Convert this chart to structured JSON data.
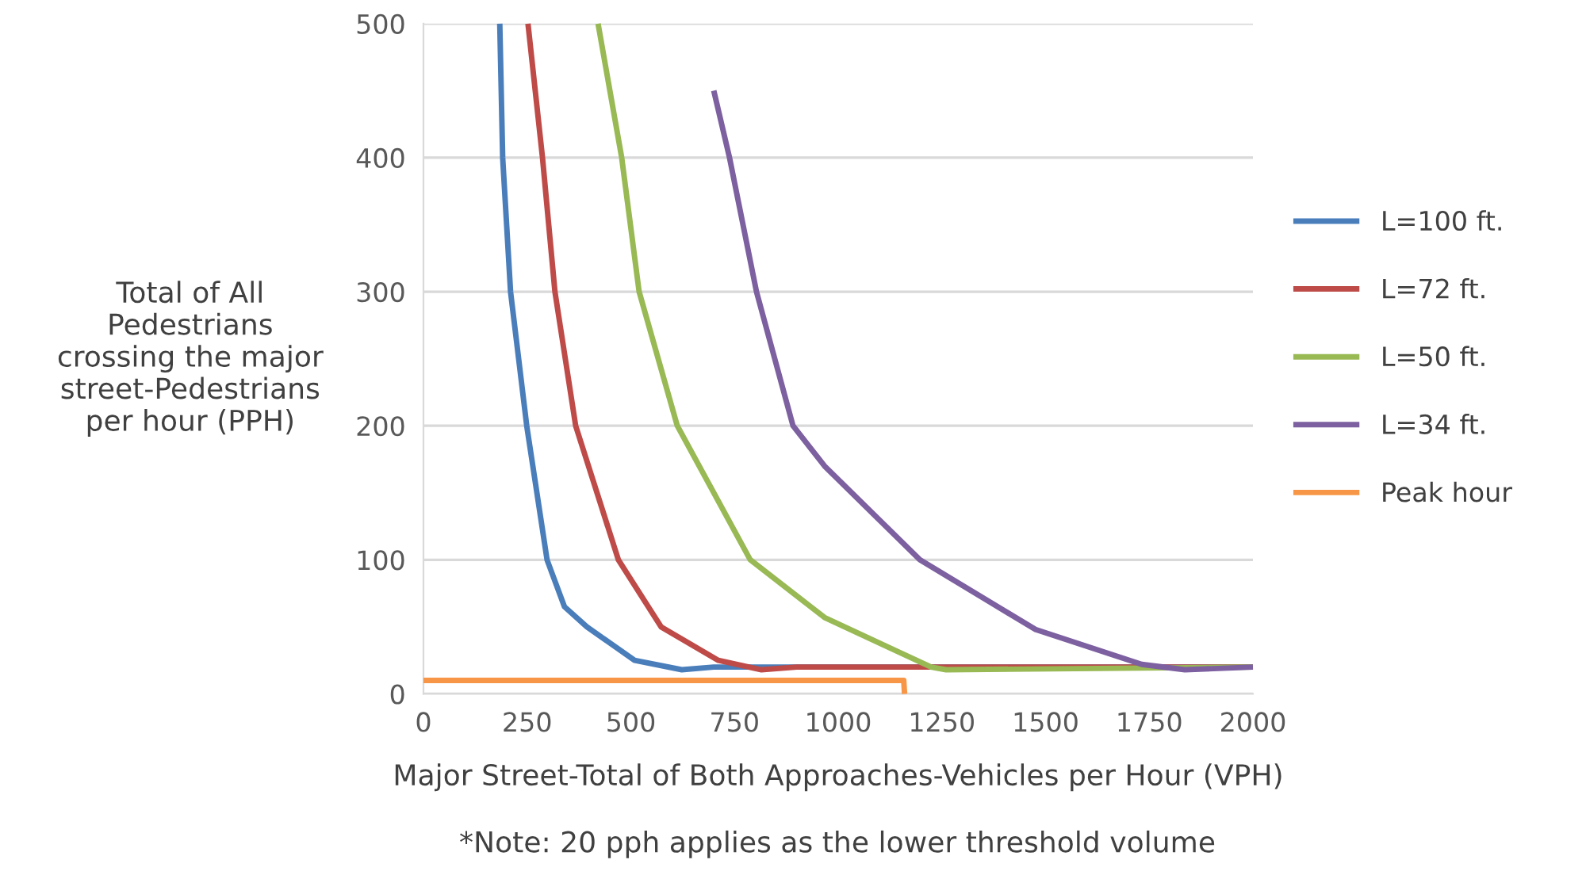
{
  "chart_data": {
    "type": "line",
    "xlabel": "Major Street-Total of Both Approaches-Vehicles per Hour (VPH)",
    "ylabel": "Total of All\nPedestrians\ncrossing the major\nstreet-Pedestrians\nper hour (PPH)",
    "annotations": [
      "*Note: 20 pph applies as the lower threshold volume"
    ],
    "series": [
      {
        "name": "L=100 ft.",
        "color": "#4a7ebb",
        "x": [
          184,
          191,
          210,
          249,
          298,
          340,
          394,
          509,
          623,
          700,
          2000
        ],
        "values": [
          500,
          400,
          300,
          200,
          100,
          65,
          50,
          25,
          18,
          20,
          20
        ]
      },
      {
        "name": "L=72 ft.",
        "color": "#be4b48",
        "x": [
          252,
          287,
          317,
          367,
          470,
          573,
          711,
          815,
          900,
          2000
        ],
        "values": [
          500,
          400,
          300,
          200,
          100,
          50,
          25,
          18,
          20,
          20
        ]
      },
      {
        "name": "L=50 ft.",
        "color": "#98b954",
        "x": [
          421,
          478,
          520,
          612,
          788,
          967,
          1120,
          1224,
          1260,
          2000
        ],
        "values": [
          500,
          400,
          300,
          200,
          100,
          57,
          35,
          20,
          18,
          20
        ]
      },
      {
        "name": "L=34 ft.",
        "color": "#7d60a0",
        "x": [
          700,
          738,
          803,
          891,
          967,
          1197,
          1476,
          1732,
          1836,
          2000
        ],
        "values": [
          450,
          400,
          300,
          200,
          170,
          100,
          48,
          22,
          18,
          20
        ]
      },
      {
        "name": "Peak hour",
        "color": "#f79646",
        "x": [
          0,
          1158,
          1160
        ],
        "values": [
          10,
          10,
          0
        ]
      }
    ],
    "xlim": [
      0,
      2000
    ],
    "xticks": [
      0,
      250,
      500,
      750,
      1000,
      1250,
      1500,
      1750,
      2000
    ],
    "ylim": [
      0,
      500
    ],
    "yticks": [
      0,
      100,
      200,
      300,
      400,
      500
    ],
    "grid": "y",
    "legend": "right",
    "marker": "none",
    "line_style": "solid"
  }
}
